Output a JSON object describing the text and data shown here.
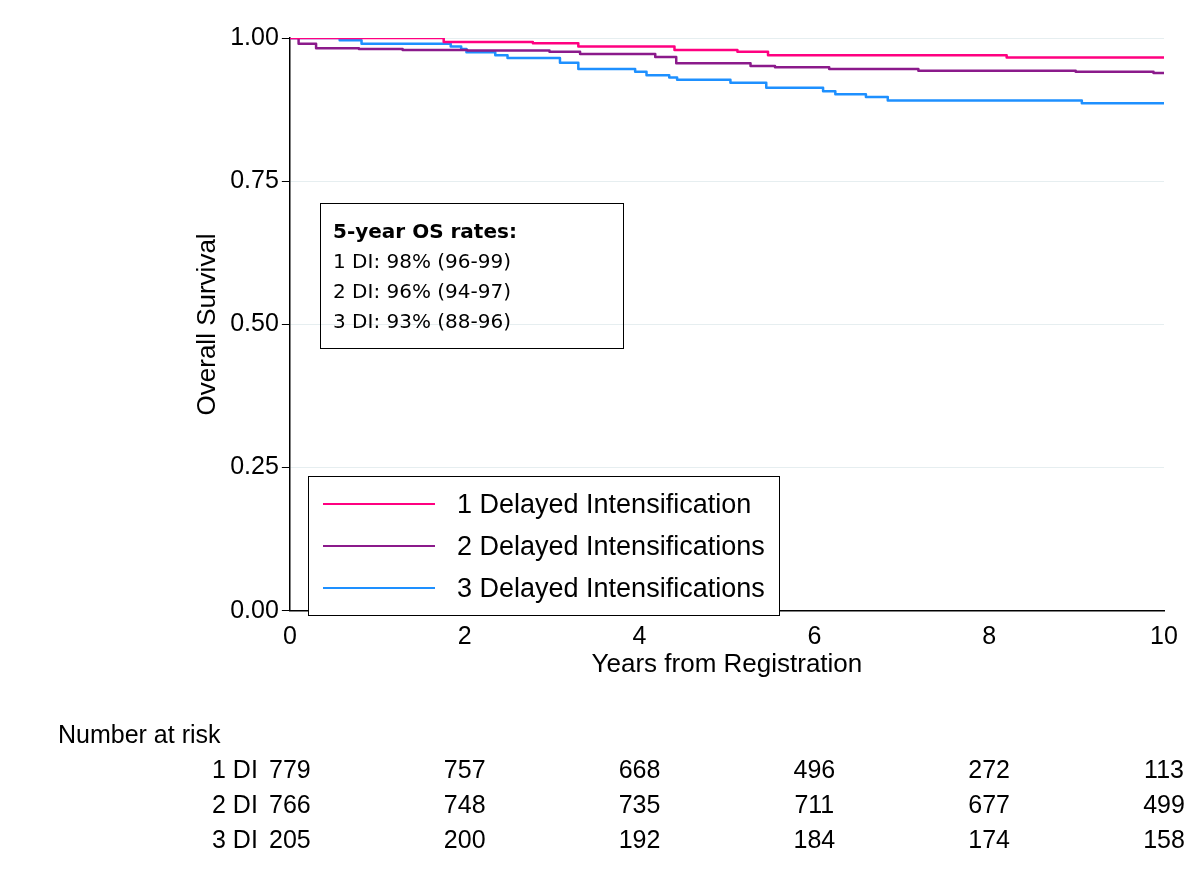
{
  "chart_data": {
    "type": "step",
    "xlabel": "Years from Registration",
    "ylabel": "Overall Survival",
    "xlim": [
      0,
      10
    ],
    "xticks": [
      0,
      2,
      4,
      6,
      8,
      10
    ],
    "ylim": [
      0,
      1
    ],
    "yticks": [
      {
        "value": 0,
        "label": "0.00"
      },
      {
        "value": 0.25,
        "label": "0.25"
      },
      {
        "value": 0.5,
        "label": "0.50"
      },
      {
        "value": 0.75,
        "label": "0.75"
      },
      {
        "value": 1,
        "label": "1.00"
      }
    ],
    "grid": "y",
    "legend": "bottom left",
    "marker": "none",
    "line_style": "solid",
    "series": [
      {
        "name": "1 Delayed Intensification",
        "color": "#ff0080",
        "x": [
          0,
          1.76,
          2.78,
          3.3,
          4.4,
          5.12,
          5.47,
          8.2,
          10
        ],
        "values": [
          1,
          0.993,
          0.991,
          0.985,
          0.979,
          0.976,
          0.97,
          0.966,
          0.966
        ]
      },
      {
        "name": "2 Delayed Intensifications",
        "color": "#8b1a8b",
        "x": [
          0,
          0.1,
          0.3,
          0.79,
          1.29,
          2.03,
          2.97,
          3.32,
          4.18,
          4.42,
          5.27,
          5.55,
          6.17,
          7.19,
          8.99,
          9.88,
          10
        ],
        "values": [
          1,
          0.99,
          0.982,
          0.981,
          0.979,
          0.978,
          0.976,
          0.972,
          0.967,
          0.956,
          0.951,
          0.949,
          0.946,
          0.943,
          0.941,
          0.939,
          0.939
        ]
      },
      {
        "name": "3 Delayed Intensifications",
        "color": "#1e90ff",
        "x": [
          0,
          0.57,
          0.82,
          1.84,
          1.96,
          2.02,
          2.35,
          2.49,
          3.09,
          3.3,
          3.95,
          4.08,
          4.34,
          4.43,
          5.04,
          5.45,
          6.1,
          6.24,
          6.59,
          6.84,
          9.06,
          10
        ],
        "values": [
          1,
          0.996,
          0.99,
          0.985,
          0.981,
          0.975,
          0.97,
          0.965,
          0.957,
          0.946,
          0.941,
          0.935,
          0.931,
          0.927,
          0.922,
          0.913,
          0.907,
          0.902,
          0.897,
          0.891,
          0.886,
          0.886
        ]
      }
    ],
    "annotations": [
      "5-year OS rates:",
      "1 DI: 98% (96-99)",
      "2 DI: 96% (94-97)",
      "3 DI: 93% (88-96)",
      "Number at risk",
      "1 DI",
      "2 DI",
      "3 DI",
      "779",
      "757",
      "668",
      "496",
      "272",
      "113",
      "766",
      "748",
      "735",
      "711",
      "677",
      "499",
      "205",
      "200",
      "192",
      "184",
      "174",
      "158"
    ]
  }
}
